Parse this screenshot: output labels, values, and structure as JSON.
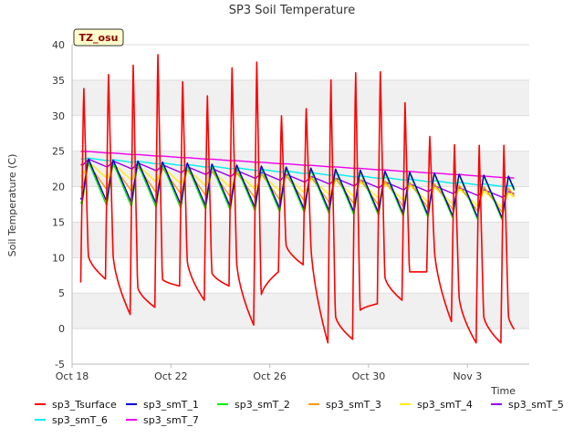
{
  "chart_data": {
    "type": "line",
    "title": "SP3 Soil Temperature",
    "xlabel": "Time",
    "ylabel": "Soil Temperature (C)",
    "annotation": "TZ_osu",
    "xlim": [
      0,
      18.5
    ],
    "ylim": [
      -5,
      40
    ],
    "y_ticks": [
      -5,
      0,
      5,
      10,
      15,
      20,
      25,
      30,
      35,
      40
    ],
    "x_ticks": [
      {
        "day": 0,
        "label": "Oct 18"
      },
      {
        "day": 4,
        "label": "Oct 22"
      },
      {
        "day": 8,
        "label": "Oct 26"
      },
      {
        "day": 12,
        "label": "Oct 30"
      },
      {
        "day": 16,
        "label": "Nov 3"
      }
    ],
    "grid_bands": true,
    "x_start_day": 0.35,
    "x_end_day": 17.9,
    "series": [
      {
        "name": "sp3_Tsurface",
        "color": "#ff0000",
        "kind": "surface",
        "daily_max": [
          34.5,
          36.5,
          38.0,
          39.5,
          35.5,
          33.5,
          37.5,
          38.5,
          30.5,
          31.5,
          36.0,
          37.0,
          37.0,
          32.5,
          27.5,
          26.5,
          26.5
        ],
        "daily_min": [
          6.5,
          7.0,
          2.0,
          3.0,
          6.0,
          4.0,
          6.0,
          0.5,
          8.0,
          9.0,
          -2.0,
          -1.5,
          3.5,
          4.0,
          8.0,
          1.0,
          -2.0
        ]
      },
      {
        "name": "sp3_smT_1",
        "color": "#0000cc",
        "kind": "soil",
        "start": 21.0,
        "end": 18.5,
        "amp": 6.0,
        "lag": 0.55
      },
      {
        "name": "sp3_smT_2",
        "color": "#00ee00",
        "kind": "soil",
        "start": 20.5,
        "end": 18.3,
        "amp": 6.2,
        "lag": 0.55
      },
      {
        "name": "sp3_smT_3",
        "color": "#ff9900",
        "kind": "soil",
        "start": 21.5,
        "end": 18.0,
        "amp": 3.5,
        "lag": 0.62
      },
      {
        "name": "sp3_smT_4",
        "color": "#ffee00",
        "kind": "soil",
        "start": 22.5,
        "end": 18.0,
        "amp": 2.2,
        "lag": 0.68
      },
      {
        "name": "sp3_smT_5",
        "color": "#9900ee",
        "kind": "soil",
        "start": 23.5,
        "end": 18.8,
        "amp": 0.9,
        "lag": 0.75
      },
      {
        "name": "sp3_smT_6",
        "color": "#00eeee",
        "kind": "soil",
        "start": 24.0,
        "end": 20.0,
        "amp": 0.2,
        "lag": 0.8
      },
      {
        "name": "sp3_smT_7",
        "color": "#ee00ee",
        "kind": "soil",
        "start": 25.0,
        "end": 21.2,
        "amp": 0.05,
        "lag": 0.8
      }
    ]
  }
}
